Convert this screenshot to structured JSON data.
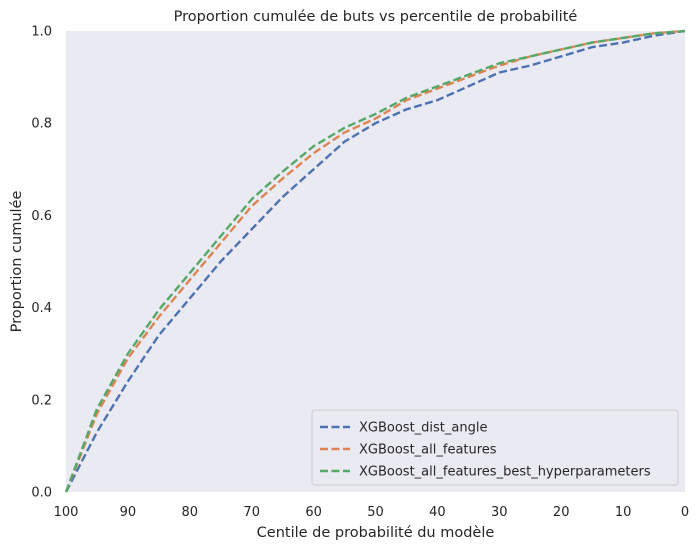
{
  "chart_data": {
    "type": "line",
    "title": "Proportion cumulée de buts vs percentile de probabilité",
    "xlabel": "Centile de probabilité du modèle",
    "ylabel": "Proportion cumulée",
    "xlim": [
      100,
      0
    ],
    "ylim": [
      0,
      1
    ],
    "x_inverted": true,
    "xticks": [
      100,
      90,
      80,
      70,
      60,
      50,
      40,
      30,
      20,
      10,
      0
    ],
    "xtick_labels": [
      "100",
      "90",
      "80",
      "70",
      "60",
      "50",
      "40",
      "30",
      "20",
      "10",
      "0"
    ],
    "yticks": [
      0,
      0.2,
      0.4,
      0.6,
      0.8,
      1.0
    ],
    "ytick_labels": [
      "0.0",
      "0.2",
      "0.4",
      "0.6",
      "0.8",
      "1.0"
    ],
    "grid": false,
    "legend_position": "lower-right",
    "background_color": "#eaeaf2",
    "x": [
      100,
      95,
      90,
      85,
      80,
      75,
      70,
      65,
      60,
      55,
      50,
      45,
      40,
      35,
      30,
      25,
      20,
      15,
      10,
      5,
      0
    ],
    "series": [
      {
        "name": "XGBoost_dist_angle",
        "color": "#4c72b0",
        "line_style": "dashed",
        "values": [
          0.0,
          0.13,
          0.24,
          0.34,
          0.42,
          0.5,
          0.57,
          0.64,
          0.7,
          0.76,
          0.8,
          0.83,
          0.85,
          0.88,
          0.91,
          0.925,
          0.945,
          0.965,
          0.975,
          0.99,
          1.0
        ]
      },
      {
        "name": "XGBoost_all_features",
        "color": "#dd8452",
        "line_style": "dashed",
        "values": [
          0.0,
          0.17,
          0.29,
          0.38,
          0.46,
          0.54,
          0.62,
          0.68,
          0.735,
          0.78,
          0.81,
          0.85,
          0.875,
          0.9,
          0.925,
          0.945,
          0.96,
          0.975,
          0.985,
          0.995,
          1.0
        ]
      },
      {
        "name": "XGBoost_all_features_best_hyperparameters",
        "color": "#55a868",
        "line_style": "dashed",
        "values": [
          0.0,
          0.18,
          0.3,
          0.395,
          0.475,
          0.555,
          0.635,
          0.695,
          0.75,
          0.79,
          0.82,
          0.855,
          0.88,
          0.905,
          0.93,
          0.945,
          0.96,
          0.975,
          0.985,
          0.995,
          1.0
        ]
      }
    ]
  }
}
